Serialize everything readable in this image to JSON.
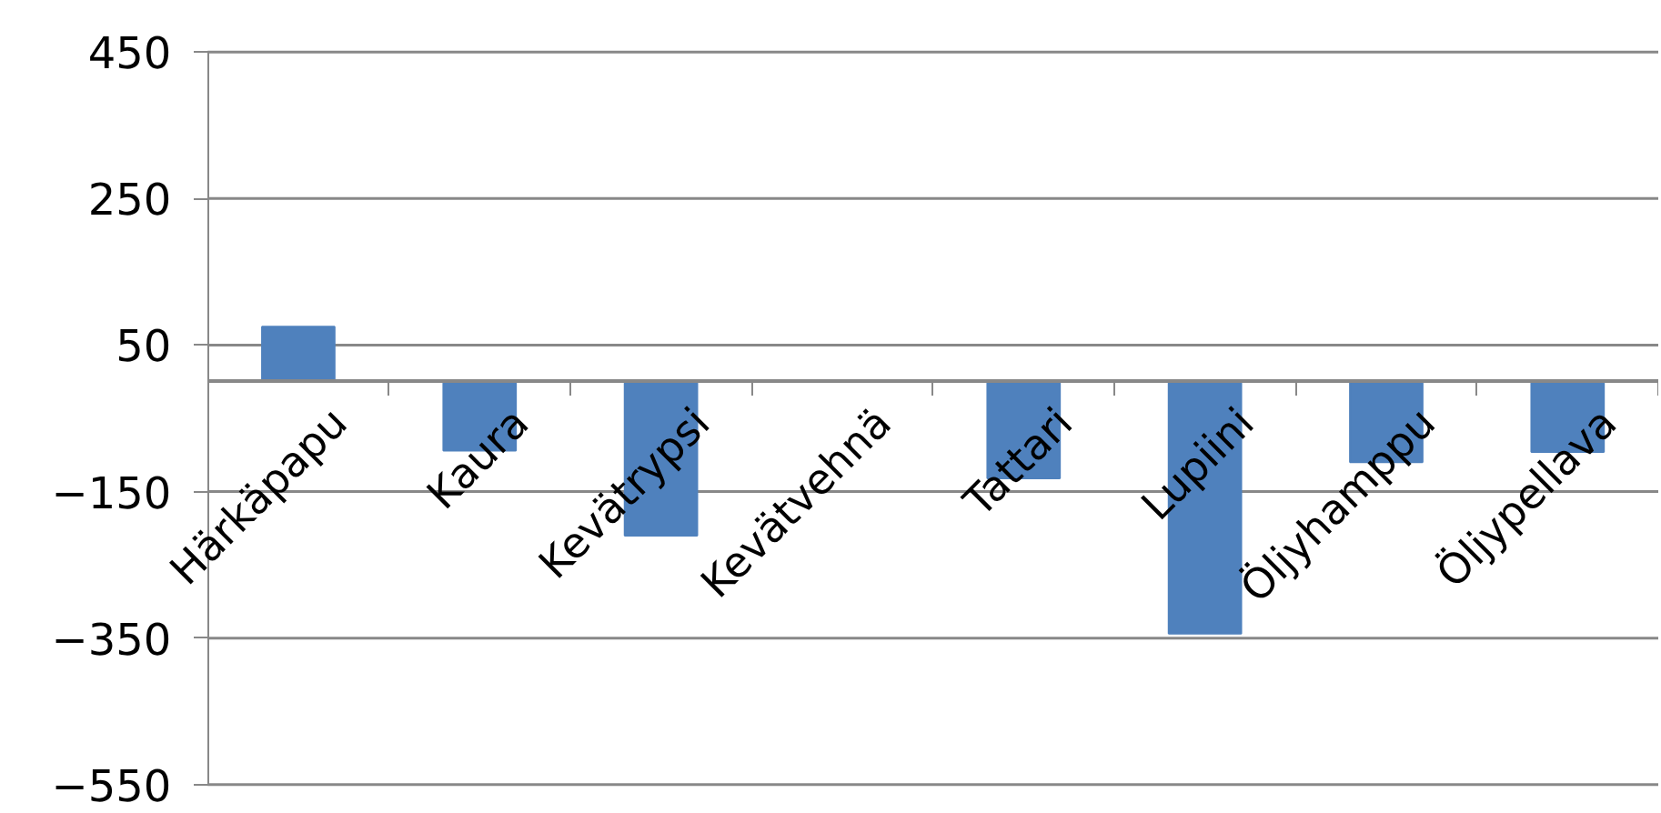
{
  "chart_data": {
    "type": "bar",
    "categories": [
      "Härkäpapu",
      "Kaura",
      "Kevätrypsi",
      "Kevätvehnä",
      "Tattari",
      "Lupiini",
      "Öljyhamppu",
      "Öljypellava"
    ],
    "values": [
      75,
      -94,
      -210,
      0,
      -132,
      -344,
      -110,
      -96
    ],
    "color": "#4f81bd",
    "ylim": [
      -550,
      450
    ],
    "yticks": [
      -550,
      -350,
      -150,
      50,
      250,
      450
    ],
    "grid": "y"
  }
}
